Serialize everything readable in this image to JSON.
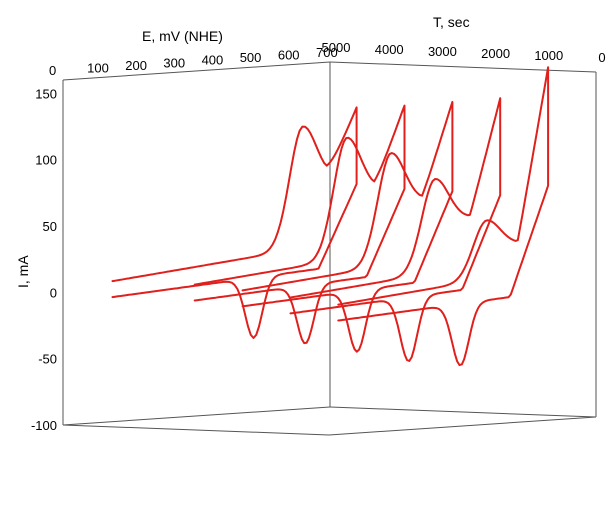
{
  "chart_data": {
    "type": "line",
    "projection": "3d",
    "axes": {
      "x": {
        "label": "E, mV (NHE)",
        "ticks": [
          "0",
          "100",
          "200",
          "300",
          "400",
          "500",
          "600",
          "700"
        ],
        "range": [
          0,
          700
        ]
      },
      "t": {
        "label": "T, sec",
        "ticks": [
          "5000",
          "4000",
          "3000",
          "2000",
          "1000",
          "0"
        ],
        "range": [
          5000,
          0
        ]
      },
      "y": {
        "label": "I, mA",
        "ticks": [
          "150",
          "100",
          "50",
          "0",
          "-50",
          "-100"
        ],
        "range": [
          -100,
          160
        ]
      }
    },
    "series_color": "#e0201c",
    "series": [
      {
        "t": 4500,
        "e_start": 60,
        "e_end": 700,
        "i_start": 8,
        "i_end": 120,
        "anodic_peak_e": 560,
        "anodic_peak_i": 115,
        "cathodic_peak_e": 430,
        "cathodic_peak_i": -42
      },
      {
        "t": 3600,
        "e_start": 150,
        "e_end": 700,
        "i_start": 5,
        "i_end": 125,
        "anodic_peak_e": 550,
        "anodic_peak_i": 108,
        "cathodic_peak_e": 440,
        "cathodic_peak_i": -45
      },
      {
        "t": 2700,
        "e_start": 150,
        "e_end": 700,
        "i_start": 2,
        "i_end": 130,
        "anodic_peak_e": 540,
        "anodic_peak_i": 98,
        "cathodic_peak_e": 450,
        "cathodic_peak_i": -50
      },
      {
        "t": 1800,
        "e_start": 150,
        "e_end": 700,
        "i_start": -2,
        "i_end": 135,
        "anodic_peak_e": 530,
        "anodic_peak_i": 80,
        "cathodic_peak_e": 460,
        "cathodic_peak_i": -56
      },
      {
        "t": 900,
        "e_start": 150,
        "e_end": 700,
        "i_start": -6,
        "i_end": 160,
        "anodic_peak_e": 540,
        "anodic_peak_i": 50,
        "cathodic_peak_e": 470,
        "cathodic_peak_i": -58
      }
    ]
  }
}
